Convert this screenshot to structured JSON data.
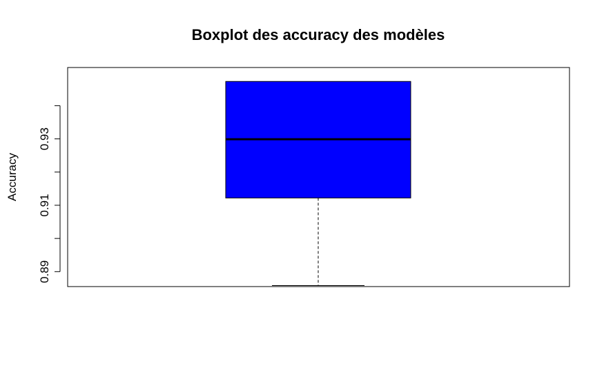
{
  "chart_data": {
    "type": "boxplot",
    "title": "Boxplot des accuracy des modèles",
    "xlabel": "",
    "ylabel": "Accuracy",
    "ylim": [
      0.8855,
      0.9515
    ],
    "yticks": [
      0.89,
      0.9,
      0.91,
      0.92,
      0.93,
      0.94
    ],
    "ytick_labels": [
      "0.89",
      "",
      "0.91",
      "",
      "0.93",
      ""
    ],
    "box": {
      "min": 0.8858,
      "q1": 0.9122,
      "median": 0.9299,
      "q3": 0.9473,
      "max": 0.9473
    },
    "colors": {
      "box_fill": "#0000ff",
      "stroke": "#000000"
    },
    "grid": false,
    "legend": "none"
  }
}
